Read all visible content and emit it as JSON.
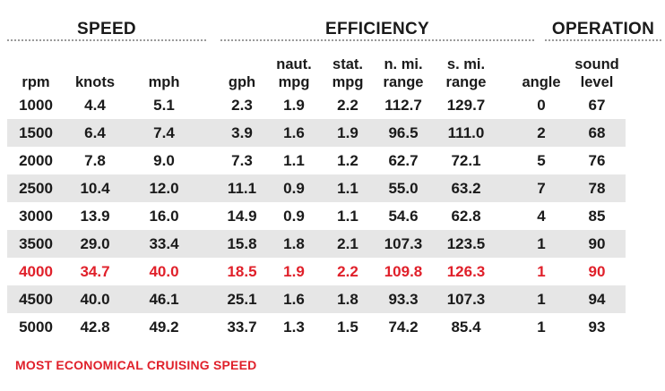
{
  "groups": {
    "speed": "SPEED",
    "efficiency": "EFFICIENCY",
    "operation": "OPERATION"
  },
  "columns": [
    {
      "top": "",
      "bottom": "rpm"
    },
    {
      "top": "",
      "bottom": "knots"
    },
    {
      "top": "",
      "bottom": "mph"
    },
    {
      "top": "",
      "bottom": "gph"
    },
    {
      "top": "naut.",
      "bottom": "mpg"
    },
    {
      "top": "stat.",
      "bottom": "mpg"
    },
    {
      "top": "n. mi.",
      "bottom": "range"
    },
    {
      "top": "s. mi.",
      "bottom": "range"
    },
    {
      "top": "",
      "bottom": "angle"
    },
    {
      "top": "sound",
      "bottom": "level"
    }
  ],
  "rows": [
    [
      "1000",
      "4.4",
      "5.1",
      "2.3",
      "1.9",
      "2.2",
      "112.7",
      "129.7",
      "0",
      "67"
    ],
    [
      "1500",
      "6.4",
      "7.4",
      "3.9",
      "1.6",
      "1.9",
      "96.5",
      "111.0",
      "2",
      "68"
    ],
    [
      "2000",
      "7.8",
      "9.0",
      "7.3",
      "1.1",
      "1.2",
      "62.7",
      "72.1",
      "5",
      "76"
    ],
    [
      "2500",
      "10.4",
      "12.0",
      "11.1",
      "0.9",
      "1.1",
      "55.0",
      "63.2",
      "7",
      "78"
    ],
    [
      "3000",
      "13.9",
      "16.0",
      "14.9",
      "0.9",
      "1.1",
      "54.6",
      "62.8",
      "4",
      "85"
    ],
    [
      "3500",
      "29.0",
      "33.4",
      "15.8",
      "1.8",
      "2.1",
      "107.3",
      "123.5",
      "1",
      "90"
    ],
    [
      "4000",
      "34.7",
      "40.0",
      "18.5",
      "1.9",
      "2.2",
      "109.8",
      "126.3",
      "1",
      "90"
    ],
    [
      "4500",
      "40.0",
      "46.1",
      "25.1",
      "1.6",
      "1.8",
      "93.3",
      "107.3",
      "1",
      "94"
    ],
    [
      "5000",
      "42.8",
      "49.2",
      "33.7",
      "1.3",
      "1.5",
      "74.2",
      "85.4",
      "1",
      "93"
    ]
  ],
  "highlight_row": 6,
  "footnote": "MOST ECONOMICAL CRUISING SPEED",
  "colors": {
    "highlight": "#e0202a",
    "stripe": "#e6e6e6",
    "text": "#1a1a1a"
  }
}
